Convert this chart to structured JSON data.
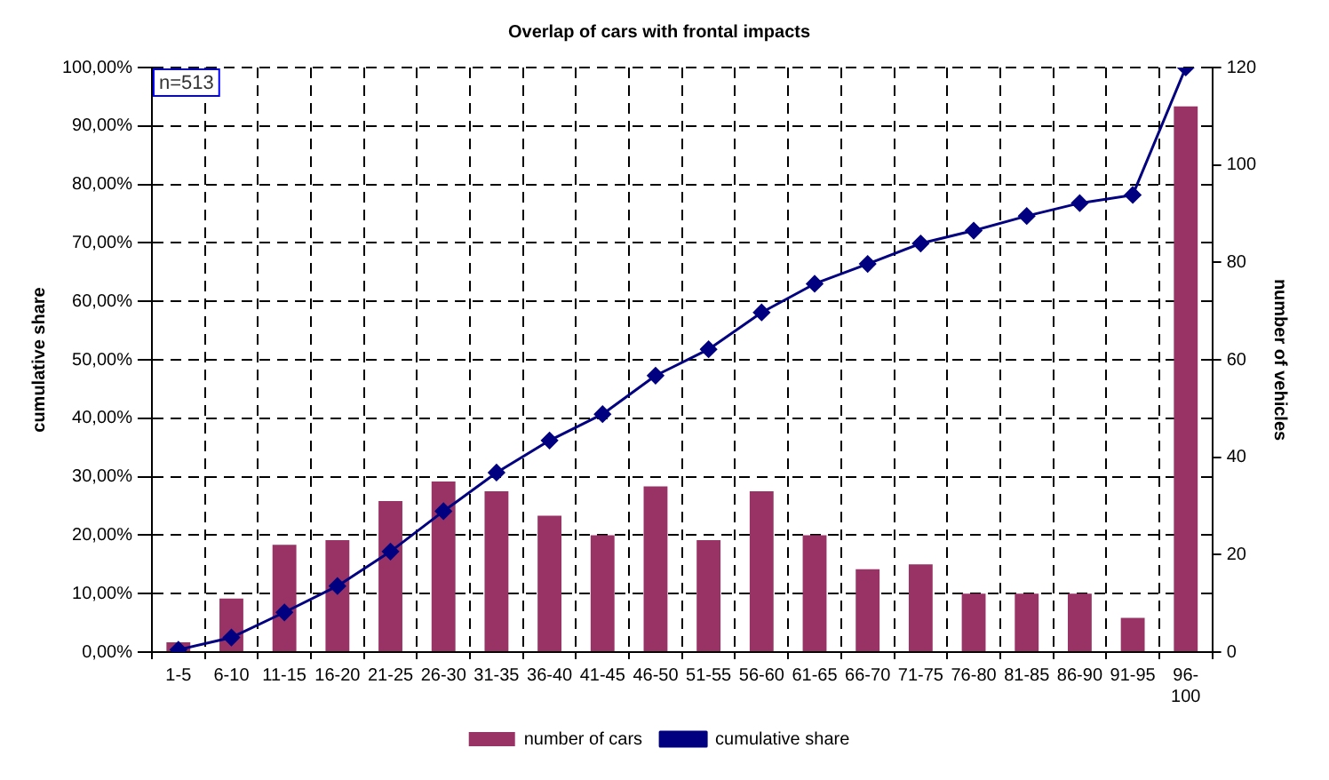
{
  "chart_data": {
    "type": "bar",
    "title": "Overlap of cars with frontal impacts",
    "ylabel": "cumulative share",
    "y2label": "number of vehicles",
    "categories": [
      "1-5",
      "6-10",
      "11-15",
      "16-20",
      "21-25",
      "26-30",
      "31-35",
      "36-40",
      "41-45",
      "46-50",
      "51-55",
      "56-60",
      "61-65",
      "66-70",
      "71-75",
      "76-80",
      "81-85",
      "86-90",
      "91-95",
      "96-100"
    ],
    "series": [
      {
        "name": "number of cars",
        "axis": "y2",
        "color": "#993366",
        "values": [
          2,
          11,
          22,
          23,
          31,
          35,
          33,
          28,
          24,
          34,
          23,
          33,
          24,
          17,
          18,
          12,
          12,
          12,
          7,
          112
        ]
      },
      {
        "name": "cumulative share",
        "type": "line",
        "color": "#000080",
        "marker": "diamond",
        "values": [
          0.4,
          2.5,
          6.8,
          11.3,
          17.2,
          24.1,
          30.7,
          36.2,
          40.7,
          47.3,
          51.8,
          58.1,
          63,
          66.4,
          69.9,
          72.1,
          74.6,
          76.8,
          78.2,
          100
        ]
      }
    ],
    "ylim": [
      0,
      100
    ],
    "yticks": [
      {
        "value": 0,
        "label": "0,00%"
      },
      {
        "value": 10,
        "label": "10,00%"
      },
      {
        "value": 20,
        "label": "20,00%"
      },
      {
        "value": 30,
        "label": "30,00%"
      },
      {
        "value": 40,
        "label": "40,00%"
      },
      {
        "value": 50,
        "label": "50,00%"
      },
      {
        "value": 60,
        "label": "60,00%"
      },
      {
        "value": 70,
        "label": "70,00%"
      },
      {
        "value": 80,
        "label": "80,00%"
      },
      {
        "value": 90,
        "label": "90,00%"
      },
      {
        "value": 100,
        "label": "100,00%"
      }
    ],
    "y2lim": [
      0,
      120
    ],
    "y2ticks": [
      0,
      20,
      40,
      60,
      80,
      100,
      120
    ],
    "grid": true,
    "legend": "bottom",
    "annotations": [
      "n=513"
    ]
  }
}
